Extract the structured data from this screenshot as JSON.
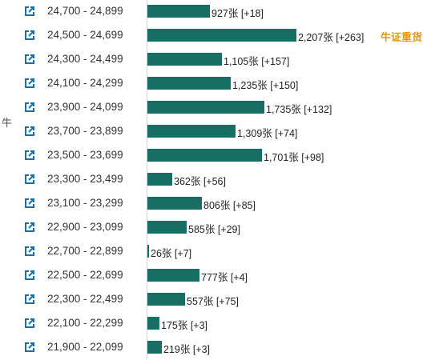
{
  "side_label": "牛",
  "unit": "张",
  "colors": {
    "bar": "#176e63",
    "note": "#e09a12",
    "icon": "#1a6fa8"
  },
  "chart_data": {
    "type": "bar",
    "orientation": "horizontal",
    "categories": [
      "24,700 - 24,899",
      "24,500 - 24,699",
      "24,300 - 24,499",
      "24,100 - 24,299",
      "23,900 - 24,099",
      "23,700 - 23,899",
      "23,500 - 23,699",
      "23,300 - 23,499",
      "23,100 - 23,299",
      "22,900 - 23,099",
      "22,700 - 22,899",
      "22,500 - 22,699",
      "22,300 - 22,499",
      "22,100 - 22,299",
      "21,900 - 22,099"
    ],
    "values": [
      927,
      2207,
      1105,
      1235,
      1735,
      1309,
      1701,
      362,
      806,
      585,
      26,
      777,
      557,
      175,
      219
    ],
    "value_labels": [
      "927",
      "2,207",
      "1,105",
      "1,235",
      "1,735",
      "1,309",
      "1,701",
      "362",
      "806",
      "585",
      "26",
      "777",
      "557",
      "175",
      "219"
    ],
    "changes": [
      "[+18]",
      "[+263]",
      "[+157]",
      "[+150]",
      "[+132]",
      "[+74]",
      "[+98]",
      "[+56]",
      "[+85]",
      "[+29]",
      "[+7]",
      "[+4]",
      "[+75]",
      "[+3]",
      "[+3]"
    ],
    "annotations": [
      {
        "row": 1,
        "text": "牛证重货"
      }
    ],
    "icon": "external-link-icon"
  }
}
